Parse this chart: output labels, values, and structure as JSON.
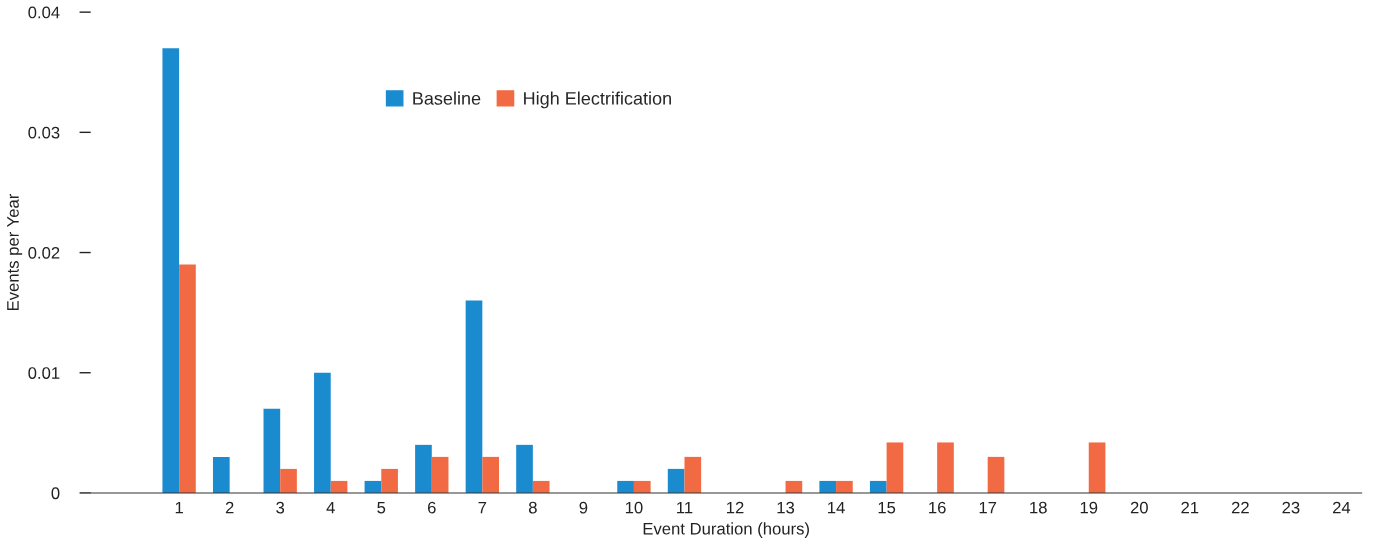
{
  "chart_data": {
    "type": "bar",
    "xlabel": "Event Duration (hours)",
    "ylabel": "Events per Year",
    "categories": [
      "1",
      "2",
      "3",
      "4",
      "5",
      "6",
      "7",
      "8",
      "9",
      "10",
      "11",
      "12",
      "13",
      "14",
      "15",
      "16",
      "17",
      "18",
      "19",
      "20",
      "21",
      "22",
      "23",
      "24"
    ],
    "series": [
      {
        "name": "Baseline",
        "color": "#1b8bd0",
        "values": [
          0.037,
          0.003,
          0.007,
          0.01,
          0.001,
          0.004,
          0.016,
          0.004,
          0,
          0.001,
          0.002,
          0,
          0,
          0.001,
          0.001,
          0,
          0,
          0,
          0,
          0,
          0,
          0,
          0,
          0
        ]
      },
      {
        "name": "High Electrification",
        "color": "#f26a43",
        "values": [
          0.019,
          0,
          0.002,
          0.001,
          0.002,
          0.003,
          0.003,
          0.001,
          0,
          0.001,
          0.003,
          0,
          0.001,
          0.001,
          0.0042,
          0.0042,
          0.003,
          0,
          0.0042,
          0,
          0,
          0,
          0,
          0
        ]
      }
    ],
    "ylim": [
      0,
      0.04
    ],
    "yticks": [
      0,
      0.01,
      0.02,
      0.03,
      0.04
    ],
    "grid": false,
    "legend": "top left"
  }
}
